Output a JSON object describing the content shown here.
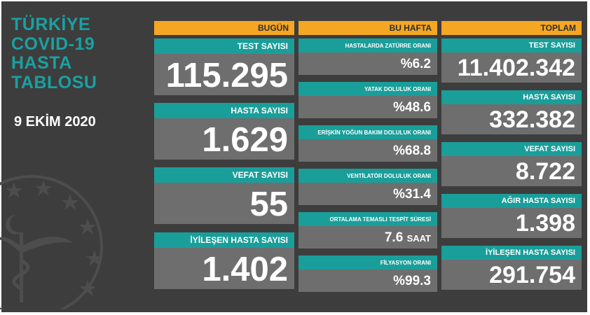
{
  "title_lines": [
    "TÜRKİYE",
    "COVID-19",
    "HASTA",
    "TABLOSU"
  ],
  "date": "9 EKİM 2020",
  "columns": {
    "today": "BUGÜN",
    "week": "BU HAFTA",
    "total": "TOPLAM"
  },
  "today": [
    {
      "label": "TEST SAYISI",
      "value": "115.295"
    },
    {
      "label": "HASTA SAYISI",
      "value": "1.629"
    },
    {
      "label": "VEFAT SAYISI",
      "value": "55"
    },
    {
      "label": "İYİLEŞEN HASTA SAYISI",
      "value": "1.402"
    }
  ],
  "week": [
    {
      "label": "HASTALARDA ZATÜRRE ORANI",
      "value": "%6.2"
    },
    {
      "label": "YATAK DOLULUK ORANI",
      "value": "%48.6"
    },
    {
      "label": "ERİŞKİN YOĞUN BAKIM DOLULUK ORANI",
      "value": "%68.8"
    },
    {
      "label": "VENTİLATÖR DOLULUK ORANI",
      "value": "%31.4"
    },
    {
      "label": "ORTALAMA TEMASLI TESPİT SÜRESİ",
      "value": "7.6",
      "unit": "SAAT"
    },
    {
      "label": "FİLYASYON ORANI",
      "value": "%99.3"
    }
  ],
  "total": [
    {
      "label": "TEST SAYISI",
      "value": "11.402.342"
    },
    {
      "label": "HASTA SAYISI",
      "value": "332.382"
    },
    {
      "label": "VEFAT SAYISI",
      "value": "8.722"
    },
    {
      "label": "AĞIR HASTA SAYISI",
      "value": "1.398"
    },
    {
      "label": "İYİLEŞEN HASTA SAYISI",
      "value": "291.754"
    }
  ],
  "colors": {
    "background": "#3d3d3d",
    "accent_teal": "#1a9e9a",
    "header_orange": "#f5a623",
    "value_box": "#6e6e6e"
  },
  "icons": [
    "ministry-emblem-icon"
  ]
}
